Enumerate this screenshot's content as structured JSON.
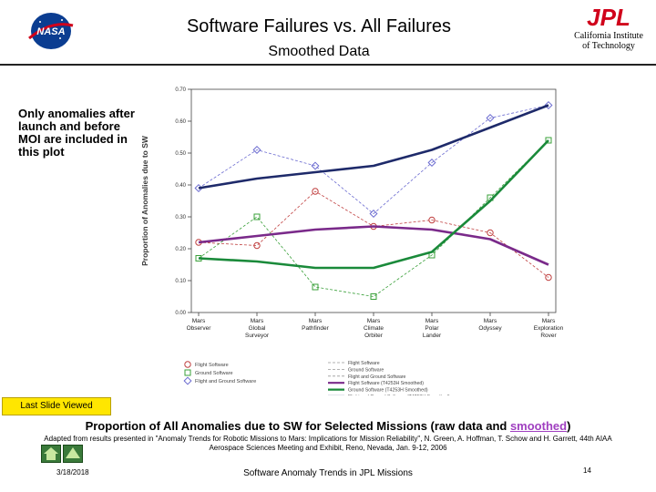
{
  "header": {
    "title": "Software Failures vs. All Failures",
    "subtitle": "Smoothed Data",
    "logo_left": "NASA",
    "logo_right": "JPL",
    "institute": "California Institute of Technology"
  },
  "side_note": "Only anomalies after launch and before MOI are included in this plot",
  "last_slide_button": "Last Slide Viewed",
  "caption": {
    "before": "Proportion of All Anomalies due to SW for Selected Missions (raw data and ",
    "link": "smoothed",
    "after": ")"
  },
  "source": "Adapted from results presented in \"Anomaly Trends for Robotic Missions to Mars: Implications for Mission Reliability\", N. Green, A. Hoffman, T. Schow and H. Garrett, 44th AIAA Aerospace Sciences Meeting and Exhibit, Reno, Nevada, Jan. 9-12, 2006",
  "footer": {
    "date": "3/18/2018",
    "title": "Software Anomaly Trends in JPL Missions",
    "page": "14"
  },
  "colors": {
    "flight": "#c04040",
    "ground": "#3aa03a",
    "both": "#6a6ad0",
    "flight_smooth": "#7a2a8a",
    "ground_smooth": "#1a8a3a",
    "both_smooth": "#1e2a6a",
    "nasa_blue": "#0b3d91",
    "jpl_red": "#d0021b"
  },
  "chart_data": {
    "type": "line",
    "ylabel": "Proportion of Anomalies due to SW",
    "xlabel": "",
    "ylim": [
      0.0,
      0.7
    ],
    "yticks": [
      "0.00",
      "0.10",
      "0.20",
      "0.30",
      "0.40",
      "0.50",
      "0.60",
      "0.70"
    ],
    "categories": [
      [
        "Mars",
        "Observer"
      ],
      [
        "Mars",
        "Global",
        "Surveyor"
      ],
      [
        "Mars",
        "Pathfinder"
      ],
      [
        "Mars",
        "Climate",
        "Orbiter"
      ],
      [
        "Mars",
        "Polar",
        "Lander"
      ],
      [
        "Mars",
        "Odyssey"
      ],
      [
        "Mars",
        "Exploration",
        "Rover"
      ]
    ],
    "series": [
      {
        "name": "Flight Software",
        "style": "raw",
        "marker": "circle",
        "color": "#c04040",
        "values": [
          0.22,
          0.21,
          0.38,
          0.27,
          0.29,
          0.25,
          0.11
        ]
      },
      {
        "name": "Ground Software",
        "style": "raw",
        "marker": "square",
        "color": "#3aa03a",
        "values": [
          0.17,
          0.3,
          0.08,
          0.05,
          0.18,
          0.36,
          0.54
        ]
      },
      {
        "name": "Flight and Ground Software",
        "style": "raw",
        "marker": "diamond",
        "color": "#6a6ad0",
        "values": [
          0.39,
          0.51,
          0.46,
          0.31,
          0.47,
          0.61,
          0.65
        ]
      },
      {
        "name": "Flight Software (T4253H Smoothed)",
        "style": "smooth",
        "color": "#7a2a8a",
        "values": [
          0.22,
          0.24,
          0.26,
          0.27,
          0.26,
          0.23,
          0.15
        ]
      },
      {
        "name": "Ground Software (T4253H Smoothed)",
        "style": "smooth",
        "color": "#1a8a3a",
        "values": [
          0.17,
          0.16,
          0.14,
          0.14,
          0.19,
          0.35,
          0.54
        ]
      },
      {
        "name": "Flight and Ground Software (T4253H Smoothed)",
        "style": "smooth",
        "color": "#1e2a6a",
        "values": [
          0.39,
          0.42,
          0.44,
          0.46,
          0.51,
          0.58,
          0.65
        ]
      }
    ],
    "legend": {
      "marker_items": [
        "Flight Software",
        "Ground Software",
        "Flight and Ground Software"
      ],
      "line_items": [
        "Flight Software",
        "Ground Software",
        "Flight and Ground Software",
        "Flight Software (T4253H Smoothed)",
        "Ground Software (T4253H Smoothed)",
        "Flight and Ground Software (T4253H Smoothed)"
      ]
    }
  }
}
